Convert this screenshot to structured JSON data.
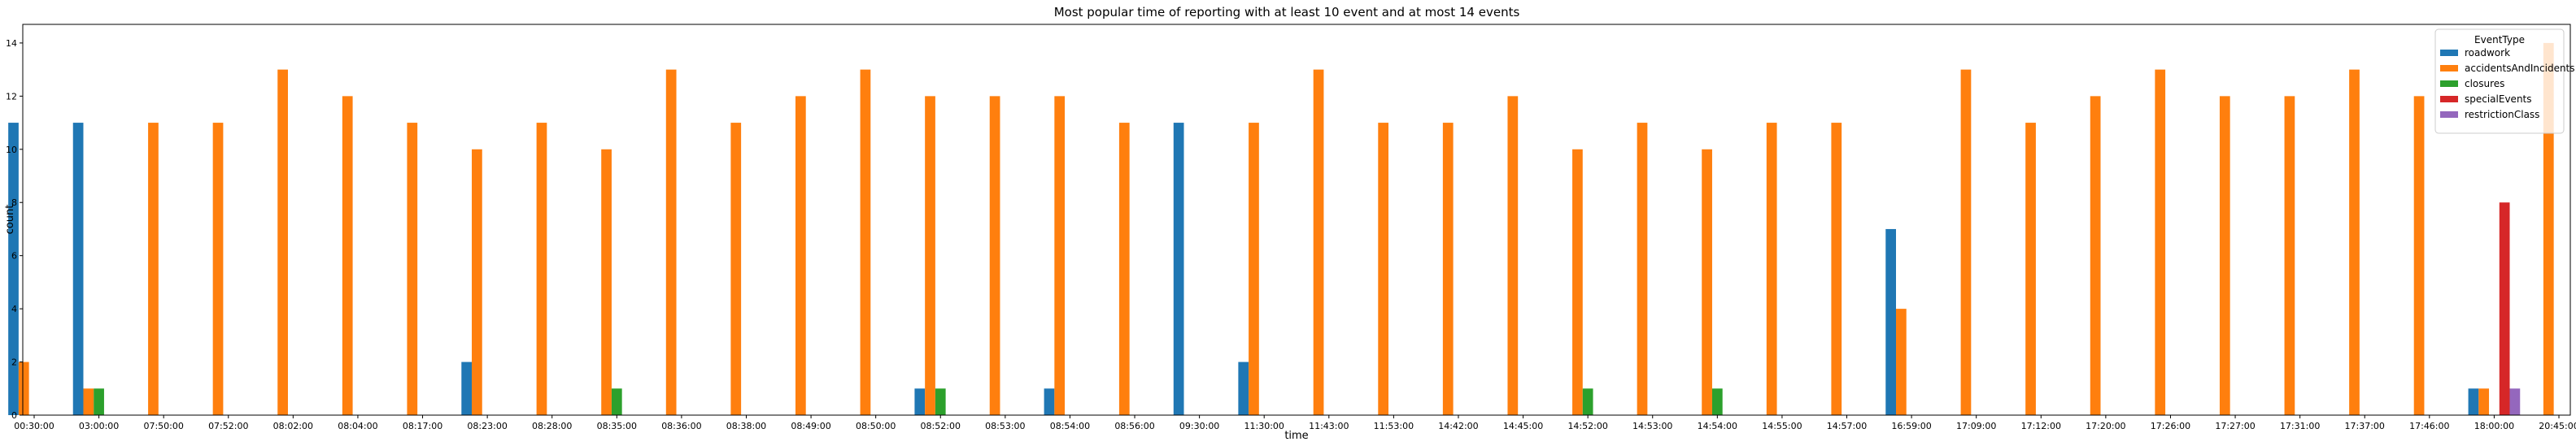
{
  "chart_data": {
    "type": "bar",
    "title": "Most popular time of reporting with at least 10 event and at most 14 events",
    "xlabel": "time",
    "ylabel": "count",
    "ylim": [
      0,
      14.7
    ],
    "yticks": [
      0,
      2,
      4,
      6,
      8,
      10,
      12,
      14
    ],
    "grid": false,
    "legend": {
      "title": "EventType",
      "placement": "top-right"
    },
    "categories": [
      "00:30:00",
      "03:00:00",
      "07:50:00",
      "07:52:00",
      "08:02:00",
      "08:04:00",
      "08:17:00",
      "08:23:00",
      "08:28:00",
      "08:35:00",
      "08:36:00",
      "08:38:00",
      "08:49:00",
      "08:50:00",
      "08:52:00",
      "08:53:00",
      "08:54:00",
      "08:56:00",
      "09:30:00",
      "11:30:00",
      "11:43:00",
      "11:53:00",
      "14:42:00",
      "14:45:00",
      "14:52:00",
      "14:53:00",
      "14:54:00",
      "14:55:00",
      "14:57:00",
      "16:59:00",
      "17:09:00",
      "17:12:00",
      "17:20:00",
      "17:26:00",
      "17:27:00",
      "17:31:00",
      "17:37:00",
      "17:46:00",
      "18:00:00",
      "20:45:00"
    ],
    "series": [
      {
        "name": "roadwork",
        "color": "#1f77b4",
        "values": [
          11,
          11,
          0,
          0,
          0,
          0,
          0,
          2,
          0,
          0,
          0,
          0,
          0,
          0,
          1,
          0,
          1,
          0,
          11,
          2,
          0,
          0,
          0,
          0,
          0,
          0,
          0,
          0,
          0,
          7,
          0,
          0,
          0,
          0,
          0,
          0,
          0,
          0,
          1,
          0
        ]
      },
      {
        "name": "accidentsAndIncidents",
        "color": "#ff7f0e",
        "values": [
          2,
          1,
          11,
          11,
          13,
          12,
          11,
          10,
          11,
          10,
          13,
          11,
          12,
          13,
          12,
          12,
          12,
          11,
          0,
          11,
          13,
          11,
          11,
          12,
          10,
          11,
          10,
          11,
          11,
          4,
          13,
          11,
          12,
          13,
          12,
          12,
          13,
          12,
          1,
          14
        ]
      },
      {
        "name": "closures",
        "color": "#2ca02c",
        "values": [
          0,
          1,
          0,
          0,
          0,
          0,
          0,
          0,
          0,
          1,
          0,
          0,
          0,
          0,
          1,
          0,
          0,
          0,
          0,
          0,
          0,
          0,
          0,
          0,
          1,
          0,
          1,
          0,
          0,
          0,
          0,
          0,
          0,
          0,
          0,
          0,
          0,
          0,
          0,
          0
        ]
      },
      {
        "name": "specialEvents",
        "color": "#d62728",
        "values": [
          0,
          0,
          0,
          0,
          0,
          0,
          0,
          0,
          0,
          0,
          0,
          0,
          0,
          0,
          0,
          0,
          0,
          0,
          0,
          0,
          0,
          0,
          0,
          0,
          0,
          0,
          0,
          0,
          0,
          0,
          0,
          0,
          0,
          0,
          0,
          0,
          0,
          0,
          8,
          0
        ]
      },
      {
        "name": "restrictionClass",
        "color": "#9467bd",
        "values": [
          0,
          0,
          0,
          0,
          0,
          0,
          0,
          0,
          0,
          0,
          0,
          0,
          0,
          0,
          0,
          0,
          0,
          0,
          0,
          0,
          0,
          0,
          0,
          0,
          0,
          0,
          0,
          0,
          0,
          0,
          0,
          0,
          0,
          0,
          0,
          0,
          0,
          0,
          1,
          0
        ]
      }
    ]
  }
}
